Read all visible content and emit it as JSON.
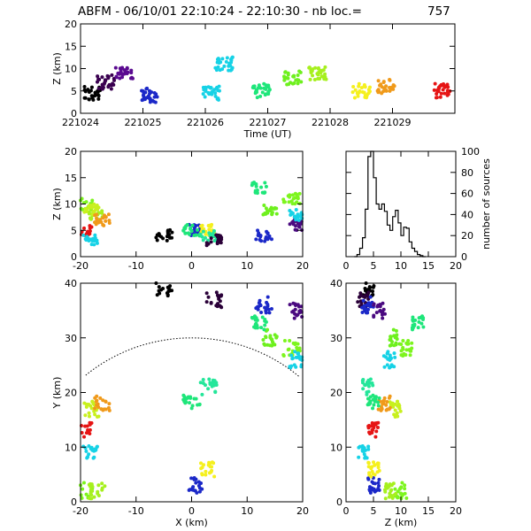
{
  "title": "ABFM - 06/10/01 22:10:24 - 22:10:30 - nb loc.=",
  "nb_loc": "757",
  "chart_data": [
    {
      "id": "time_height",
      "type": "scatter",
      "xlabel": "Time (UT)",
      "ylabel": "Z (km)",
      "xlim": [
        221024,
        221030
      ],
      "ylim": [
        0,
        20
      ],
      "xticks": [
        "221024",
        "221025",
        "221026",
        "221027",
        "221028",
        "221029"
      ],
      "yticks": [
        "0",
        "5",
        "10",
        "15",
        "20"
      ],
      "colored_by": "time",
      "clusters": [
        {
          "x": 221024.2,
          "y": 4.5,
          "color": "#000000"
        },
        {
          "x": 221024.4,
          "y": 7,
          "color": "#3a0050"
        },
        {
          "x": 221024.7,
          "y": 9,
          "color": "#5a0a90"
        },
        {
          "x": 221025.1,
          "y": 4,
          "color": "#1b28c8"
        },
        {
          "x": 221026.3,
          "y": 11,
          "color": "#16d2e6"
        },
        {
          "x": 221026.1,
          "y": 4.5,
          "color": "#16d2e6"
        },
        {
          "x": 221026.9,
          "y": 5,
          "color": "#1ee67a"
        },
        {
          "x": 221027.4,
          "y": 8,
          "color": "#6ef01e"
        },
        {
          "x": 221027.8,
          "y": 9,
          "color": "#a6f01e"
        },
        {
          "x": 221028.5,
          "y": 5,
          "color": "#f5f01e"
        },
        {
          "x": 221028.9,
          "y": 6,
          "color": "#f09a1a"
        },
        {
          "x": 221029.8,
          "y": 5,
          "color": "#e61414"
        }
      ]
    },
    {
      "id": "x_height",
      "type": "scatter",
      "xlabel": "",
      "ylabel": "Z (km)",
      "xlim": [
        -20,
        20
      ],
      "ylim": [
        0,
        20
      ],
      "xticks": [
        "-20",
        "-10",
        "0",
        "10",
        "20"
      ],
      "yticks": [
        "0",
        "5",
        "10",
        "15",
        "20"
      ]
    },
    {
      "id": "altitude_histogram",
      "type": "line",
      "xlabel": "",
      "ylabel": "number of sources",
      "xlim": [
        0,
        20
      ],
      "ylim": [
        0,
        100
      ],
      "xticks": [
        "0",
        "5",
        "10",
        "15",
        "20"
      ],
      "yticks": [
        "0",
        "20",
        "40",
        "60",
        "80",
        "100"
      ],
      "x": [
        1.5,
        2,
        2.5,
        3,
        3.5,
        4,
        4.5,
        5,
        5.5,
        6,
        6.5,
        7,
        7.5,
        8,
        8.5,
        9,
        9.5,
        10,
        10.5,
        11,
        11.5,
        12,
        12.5,
        13,
        13.5,
        14
      ],
      "values": [
        0,
        2,
        8,
        18,
        45,
        95,
        100,
        75,
        50,
        45,
        50,
        43,
        30,
        25,
        38,
        44,
        32,
        20,
        28,
        27,
        14,
        8,
        5,
        2,
        1,
        0
      ]
    },
    {
      "id": "plan_view",
      "type": "scatter",
      "xlabel": "X (km)",
      "ylabel": "Y (km)",
      "xlim": [
        -20,
        20
      ],
      "ylim": [
        0,
        40
      ],
      "xticks": [
        "-20",
        "-10",
        "0",
        "10",
        "20"
      ],
      "yticks": [
        "0",
        "10",
        "20",
        "30",
        "40"
      ],
      "range_circle_radius_km": 30
    },
    {
      "id": "y_height",
      "type": "scatter",
      "xlabel": "Z (km)",
      "ylabel": "",
      "xlim": [
        0,
        20
      ],
      "ylim": [
        0,
        40
      ],
      "xticks": [
        "0",
        "5",
        "10",
        "15",
        "20"
      ],
      "yticks": [
        "0",
        "10",
        "20",
        "30",
        "40"
      ]
    }
  ],
  "sources": [
    {
      "x": -19,
      "y": 2,
      "z": 10,
      "color": "#7df51e"
    },
    {
      "x": -17,
      "y": 2,
      "z": 8,
      "color": "#a6f01e"
    },
    {
      "x": -18,
      "y": 17,
      "z": 9,
      "color": "#c8f01e"
    },
    {
      "x": -16,
      "y": 18,
      "z": 7,
      "color": "#f09a1a"
    },
    {
      "x": -19.5,
      "y": 13,
      "z": 5,
      "color": "#e61414"
    },
    {
      "x": -18,
      "y": 9,
      "z": 3,
      "color": "#16d2e6"
    },
    {
      "x": 1,
      "y": 3,
      "z": 5,
      "color": "#1b28c8"
    },
    {
      "x": 3,
      "y": 6,
      "z": 5,
      "color": "#f5f01e"
    },
    {
      "x": 0,
      "y": 18,
      "z": 5,
      "color": "#1ee67a"
    },
    {
      "x": 3,
      "y": 21,
      "z": 4,
      "color": "#24e69a"
    },
    {
      "x": -5,
      "y": 39,
      "z": 4,
      "color": "#000000"
    },
    {
      "x": 4,
      "y": 37,
      "z": 3,
      "color": "#2a0038"
    },
    {
      "x": 13,
      "y": 36,
      "z": 4,
      "color": "#1b28c8"
    },
    {
      "x": 19,
      "y": 35,
      "z": 6,
      "color": "#4a0a80"
    },
    {
      "x": 14,
      "y": 30,
      "z": 9,
      "color": "#6ef01e"
    },
    {
      "x": 18,
      "y": 28,
      "z": 11,
      "color": "#7df51e"
    },
    {
      "x": 12,
      "y": 33,
      "z": 13,
      "color": "#1ee67a"
    },
    {
      "x": 19,
      "y": 26,
      "z": 8,
      "color": "#16d2e6"
    }
  ]
}
